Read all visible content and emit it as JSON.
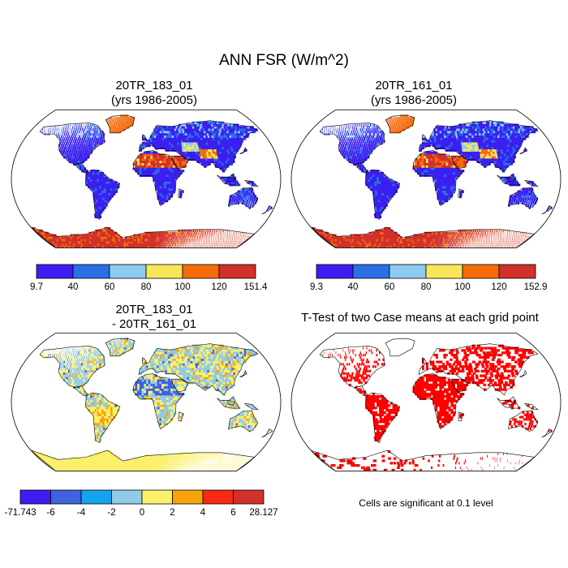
{
  "title": "ANN FSR (W/m^2)",
  "panels": [
    {
      "id": "case1",
      "title_line1": "20TR_183_01",
      "title_line2": "(yrs 1986-2005)",
      "colorbar": {
        "colors": [
          "#3c1ff0",
          "#2a6fe6",
          "#8ecbf0",
          "#f8e55a",
          "#f56b0a",
          "#d1302b"
        ],
        "labels": [
          "9.7",
          "40",
          "60",
          "80",
          "100",
          "120",
          "151.4"
        ]
      }
    },
    {
      "id": "case2",
      "title_line1": "20TR_161_01",
      "title_line2": "(yrs 1986-2005)",
      "colorbar": {
        "colors": [
          "#3c1ff0",
          "#2a6fe6",
          "#8ecbf0",
          "#f8e55a",
          "#f56b0a",
          "#d1302b"
        ],
        "labels": [
          "9.3",
          "40",
          "60",
          "80",
          "100",
          "120",
          "152.9"
        ]
      }
    },
    {
      "id": "diff",
      "title_line1": "20TR_183_01",
      "title_line2": "- 20TR_161_01",
      "colorbar": {
        "colors": [
          "#3c1ff0",
          "#3f62dd",
          "#14a4ee",
          "#92cbe8",
          "#fbf06a",
          "#f7a30b",
          "#f62a10",
          "#d1302b"
        ],
        "labels": [
          "-71.743",
          "-6",
          "-4",
          "-2",
          "0",
          "2",
          "4",
          "6",
          "28.127"
        ]
      }
    },
    {
      "id": "ttest",
      "title": "T-Test of two Case means at each grid point",
      "note": "Cells are significant at 0.1 level"
    }
  ],
  "map_colors": {
    "case_land": "#3c1ff0",
    "case_mid": "#2a6fe6",
    "case_light": "#8ecbf0",
    "case_yellow": "#f8e55a",
    "case_orange": "#f56b0a",
    "case_red": "#d1302b",
    "diff_base": "#92cbe8",
    "diff_yellow": "#fbf06a",
    "diff_orange": "#f7a30b",
    "diff_blue": "#3f62dd",
    "sig_red": "#ff0000"
  }
}
